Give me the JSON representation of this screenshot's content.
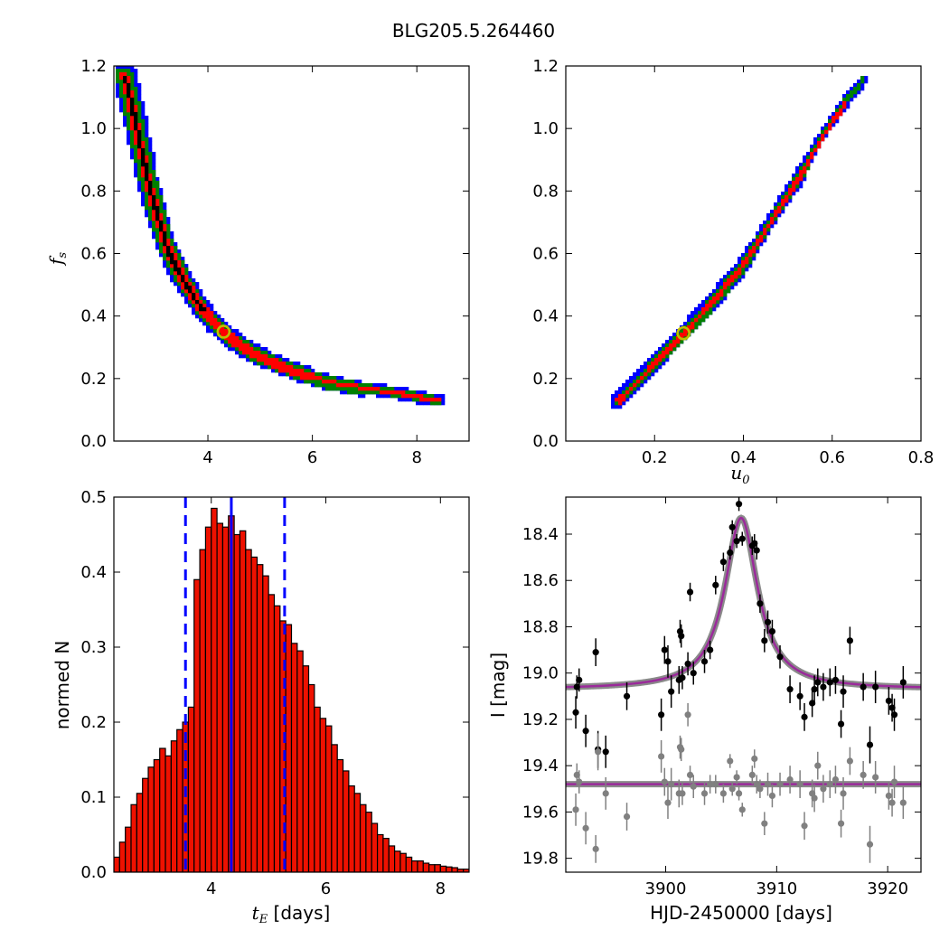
{
  "figure": {
    "title": "BLG205.5.264460"
  },
  "colors": {
    "blue": "#0000ff",
    "green": "#008000",
    "red": "#ff0000",
    "black": "#000000",
    "marker_edge": "#bfbf00",
    "model": "#9b2a9b",
    "grey": "#808080",
    "bar": "#ee1100"
  },
  "chart_data": [
    {
      "type": "heatmap",
      "title": "",
      "xlabel": "",
      "ylabel": "f",
      "ylabel_sub": "s",
      "xlim": [
        2.2,
        9.0
      ],
      "ylim": [
        0.0,
        1.2
      ],
      "xticks": [
        "4",
        "6",
        "8"
      ],
      "yticks": [
        "0.0",
        "0.2",
        "0.4",
        "0.6",
        "0.8",
        "1.0",
        "1.2"
      ],
      "best_fit": {
        "x": 4.3,
        "y": 0.35
      },
      "confidence_region": {
        "x": [
          2.4,
          2.6,
          2.8,
          3.0,
          3.2,
          3.5,
          3.8,
          4.1,
          4.5,
          5.0,
          5.6,
          6.3,
          7.0,
          7.8,
          8.4
        ],
        "y": [
          1.17,
          1.02,
          0.86,
          0.73,
          0.62,
          0.52,
          0.44,
          0.38,
          0.32,
          0.27,
          0.23,
          0.19,
          0.17,
          0.15,
          0.13
        ],
        "levels": [
          "blue",
          "green",
          "red",
          "black"
        ]
      }
    },
    {
      "type": "heatmap",
      "title": "",
      "xlabel": "u",
      "xlabel_sub": "0",
      "ylabel": "",
      "xlim": [
        0.0,
        0.8
      ],
      "ylim": [
        0.0,
        1.2
      ],
      "xticks": [
        "0.2",
        "0.4",
        "0.6",
        "0.8"
      ],
      "yticks": [
        "0.0",
        "0.2",
        "0.4",
        "0.6",
        "0.8",
        "1.0",
        "1.2"
      ],
      "best_fit": {
        "x": 0.265,
        "y": 0.345
      },
      "confidence_region": {
        "x": [
          0.12,
          0.16,
          0.2,
          0.24,
          0.28,
          0.32,
          0.36,
          0.4,
          0.44,
          0.48,
          0.52,
          0.56,
          0.6,
          0.64,
          0.67
        ],
        "y": [
          0.13,
          0.19,
          0.25,
          0.31,
          0.37,
          0.43,
          0.5,
          0.57,
          0.66,
          0.75,
          0.84,
          0.94,
          1.03,
          1.11,
          1.16
        ],
        "levels": [
          "blue",
          "green",
          "red",
          "black"
        ]
      }
    },
    {
      "type": "bar",
      "title": "",
      "xlabel": "t",
      "xlabel_sub": "E",
      "xlabel_unit": " [days]",
      "ylabel": "normed N",
      "xlim": [
        2.3,
        8.5
      ],
      "ylim": [
        0.0,
        0.5
      ],
      "xticks": [
        "4",
        "6",
        "8"
      ],
      "yticks": [
        "0.0",
        "0.1",
        "0.2",
        "0.3",
        "0.4",
        "0.5"
      ],
      "bin_start": 2.3,
      "bin_width": 0.1,
      "values": [
        0.02,
        0.04,
        0.06,
        0.09,
        0.105,
        0.125,
        0.14,
        0.15,
        0.165,
        0.155,
        0.175,
        0.19,
        0.2,
        0.22,
        0.39,
        0.43,
        0.46,
        0.485,
        0.465,
        0.46,
        0.475,
        0.45,
        0.455,
        0.43,
        0.42,
        0.41,
        0.395,
        0.37,
        0.355,
        0.335,
        0.33,
        0.305,
        0.295,
        0.275,
        0.25,
        0.22,
        0.205,
        0.195,
        0.17,
        0.15,
        0.135,
        0.115,
        0.105,
        0.09,
        0.08,
        0.065,
        0.05,
        0.045,
        0.035,
        0.028,
        0.025,
        0.02,
        0.015,
        0.015,
        0.012,
        0.01,
        0.01,
        0.008,
        0.007,
        0.006,
        0.004,
        0.004
      ],
      "median": 4.35,
      "lower": 3.55,
      "upper": 5.28
    },
    {
      "type": "scatter",
      "title": "",
      "xlabel": "HJD-2450000 [days]",
      "ylabel": "I [mag]",
      "xlim": [
        3891,
        3923
      ],
      "ylim": [
        19.86,
        18.24
      ],
      "xticks": [
        "3900",
        "3910",
        "3920"
      ],
      "yticks": [
        "18.4",
        "18.6",
        "18.8",
        "19.0",
        "19.2",
        "19.4",
        "19.6",
        "19.8"
      ],
      "model": {
        "baseline": 19.07,
        "peak": 18.33,
        "t0": 3906.8,
        "width": 1.8
      },
      "residual_baseline": 19.48,
      "series": [
        {
          "color": "black",
          "x": [
            3891.9,
            3892.0,
            3892.2,
            3892.8,
            3893.7,
            3893.9,
            3894.6,
            3896.5,
            3899.6,
            3899.9,
            3900.2,
            3900.5,
            3901.2,
            3901.3,
            3901.4,
            3901.5,
            3902.0,
            3902.2,
            3902.5,
            3903.5,
            3904.0,
            3904.5,
            3905.2,
            3905.8,
            3906.0,
            3906.4,
            3906.6,
            3906.9,
            3907.8,
            3908.0,
            3908.2,
            3908.5,
            3908.9,
            3909.2,
            3909.6,
            3910.3,
            3911.2,
            3912.1,
            3912.5,
            3913.2,
            3913.4,
            3913.7,
            3914.2,
            3914.8,
            3915.3,
            3915.8,
            3916.0,
            3916.6,
            3917.8,
            3918.4,
            3918.9,
            3920.1,
            3920.4,
            3920.6,
            3921.4
          ],
          "y": [
            19.17,
            19.06,
            19.03,
            19.25,
            18.91,
            19.33,
            19.34,
            19.1,
            19.18,
            18.9,
            18.95,
            19.08,
            19.03,
            18.82,
            18.84,
            19.02,
            18.96,
            18.65,
            19.0,
            18.95,
            18.9,
            18.62,
            18.52,
            18.48,
            18.37,
            18.43,
            18.27,
            18.42,
            18.45,
            18.44,
            18.47,
            18.7,
            18.86,
            18.78,
            18.82,
            18.93,
            19.07,
            19.1,
            19.19,
            19.13,
            19.07,
            19.04,
            19.06,
            19.04,
            19.03,
            19.22,
            19.08,
            18.86,
            19.06,
            19.31,
            19.06,
            19.12,
            19.15,
            19.18,
            19.04
          ],
          "yerr": [
            0.07,
            0.05,
            0.05,
            0.07,
            0.06,
            0.08,
            0.07,
            0.06,
            0.07,
            0.06,
            0.07,
            0.07,
            0.06,
            0.05,
            0.05,
            0.05,
            0.05,
            0.04,
            0.05,
            0.05,
            0.04,
            0.04,
            0.04,
            0.03,
            0.03,
            0.03,
            0.03,
            0.03,
            0.04,
            0.04,
            0.04,
            0.04,
            0.05,
            0.05,
            0.05,
            0.05,
            0.06,
            0.06,
            0.06,
            0.06,
            0.06,
            0.06,
            0.06,
            0.06,
            0.06,
            0.06,
            0.07,
            0.06,
            0.06,
            0.08,
            0.07,
            0.06,
            0.06,
            0.07,
            0.07
          ]
        },
        {
          "color": "grey",
          "x": [
            3891.9,
            3892.0,
            3892.2,
            3892.8,
            3893.7,
            3893.9,
            3894.6,
            3896.5,
            3899.6,
            3899.9,
            3900.2,
            3900.5,
            3901.2,
            3901.3,
            3901.4,
            3901.5,
            3902.0,
            3902.2,
            3902.5,
            3903.5,
            3904.0,
            3904.5,
            3905.2,
            3905.8,
            3906.0,
            3906.4,
            3906.6,
            3906.9,
            3907.8,
            3908.0,
            3908.2,
            3908.5,
            3908.9,
            3909.2,
            3909.6,
            3910.3,
            3911.2,
            3912.1,
            3912.5,
            3913.2,
            3913.4,
            3913.7,
            3914.2,
            3914.8,
            3915.3,
            3915.8,
            3916.0,
            3916.6,
            3917.8,
            3918.4,
            3918.9,
            3920.1,
            3920.4,
            3920.6,
            3921.4
          ],
          "y": [
            19.59,
            19.44,
            19.47,
            19.67,
            19.76,
            19.34,
            19.52,
            19.62,
            19.36,
            19.47,
            19.56,
            19.48,
            19.52,
            19.32,
            19.33,
            19.52,
            19.18,
            19.44,
            19.49,
            19.52,
            19.48,
            19.48,
            19.52,
            19.38,
            19.5,
            19.45,
            19.52,
            19.59,
            19.44,
            19.37,
            19.48,
            19.5,
            19.65,
            19.48,
            19.53,
            19.48,
            19.46,
            19.48,
            19.66,
            19.52,
            19.54,
            19.4,
            19.5,
            19.48,
            19.46,
            19.65,
            19.52,
            19.38,
            19.44,
            19.74,
            19.45,
            19.53,
            19.56,
            19.47,
            19.56
          ],
          "yerr": [
            0.07,
            0.05,
            0.05,
            0.07,
            0.06,
            0.08,
            0.07,
            0.06,
            0.07,
            0.06,
            0.07,
            0.07,
            0.06,
            0.05,
            0.05,
            0.05,
            0.05,
            0.04,
            0.05,
            0.05,
            0.04,
            0.04,
            0.04,
            0.03,
            0.03,
            0.03,
            0.03,
            0.03,
            0.04,
            0.04,
            0.04,
            0.04,
            0.05,
            0.05,
            0.05,
            0.05,
            0.06,
            0.06,
            0.06,
            0.06,
            0.06,
            0.06,
            0.06,
            0.06,
            0.06,
            0.06,
            0.07,
            0.06,
            0.06,
            0.08,
            0.07,
            0.06,
            0.06,
            0.07,
            0.07
          ]
        }
      ]
    }
  ]
}
